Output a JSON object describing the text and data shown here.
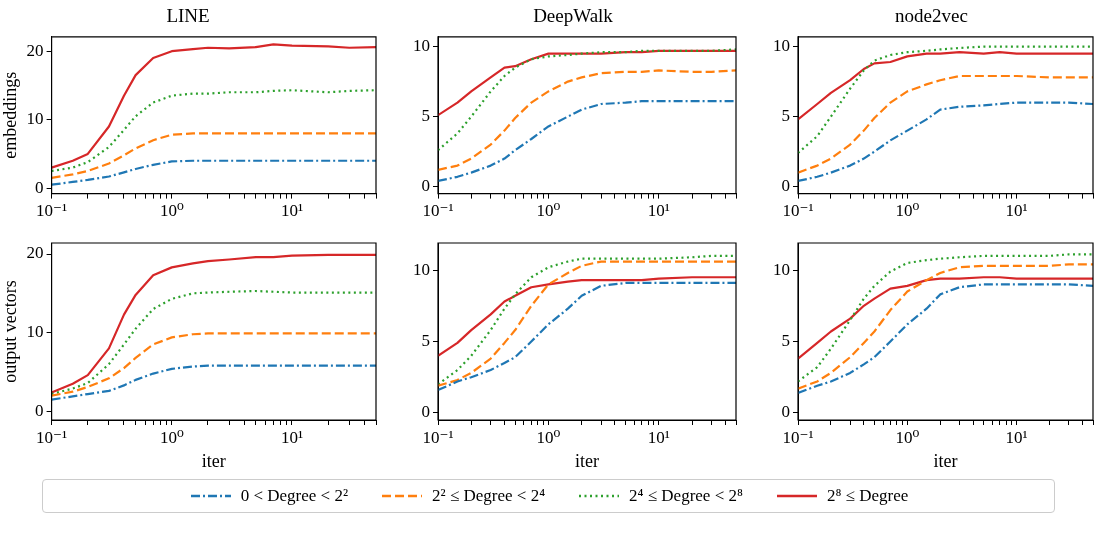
{
  "chart_data": [
    {
      "type": "line",
      "title": "LINE",
      "ylabel": "embeddings",
      "log": "x",
      "grid": false,
      "marker": "none",
      "xlim": [
        0.1,
        50
      ],
      "ylim": [
        -0.8,
        22.1
      ],
      "yticks": [
        0,
        10,
        20
      ],
      "xticks": [
        {
          "value": 0.1,
          "label": "10⁻¹"
        },
        {
          "value": 0.2,
          "label": null
        },
        {
          "value": 0.3,
          "label": null
        },
        {
          "value": 0.4,
          "label": null
        },
        {
          "value": 0.5,
          "label": null
        },
        {
          "value": 0.6,
          "label": null
        },
        {
          "value": 0.7,
          "label": null
        },
        {
          "value": 0.8,
          "label": null
        },
        {
          "value": 0.9,
          "label": null
        },
        {
          "value": 1,
          "label": "10⁰"
        },
        {
          "value": 2,
          "label": null
        },
        {
          "value": 3,
          "label": null
        },
        {
          "value": 4,
          "label": null
        },
        {
          "value": 5,
          "label": null
        },
        {
          "value": 6,
          "label": null
        },
        {
          "value": 7,
          "label": null
        },
        {
          "value": 8,
          "label": null
        },
        {
          "value": 9,
          "label": null
        },
        {
          "value": 10,
          "label": "10¹"
        },
        {
          "value": 20,
          "label": null
        },
        {
          "value": 30,
          "label": null
        },
        {
          "value": 40,
          "label": null
        },
        {
          "value": 50,
          "label": null
        }
      ],
      "x": [
        0.1,
        0.15,
        0.2,
        0.3,
        0.4,
        0.5,
        0.7,
        1,
        1.5,
        2,
        3,
        5,
        7,
        10,
        20,
        30,
        50
      ],
      "series": [
        {
          "color": "#1f77b4",
          "line_style": "dashdot",
          "values": [
            0.5,
            0.9,
            1.2,
            1.7,
            2.3,
            2.8,
            3.4,
            3.9,
            4,
            4,
            4,
            4,
            4,
            4,
            4,
            4,
            4
          ]
        },
        {
          "color": "#ff7f0e",
          "line_style": "dashed",
          "values": [
            1.5,
            2.0,
            2.5,
            3.6,
            4.8,
            5.8,
            7.0,
            7.8,
            8,
            8,
            8,
            8,
            8,
            8,
            8,
            8,
            8
          ]
        },
        {
          "color": "#2ca02c",
          "line_style": "dotted",
          "values": [
            2.5,
            3.0,
            3.8,
            6.0,
            8.5,
            10.5,
            12.5,
            13.5,
            13.8,
            13.8,
            14,
            14,
            14.2,
            14.3,
            14,
            14.2,
            14.3
          ]
        },
        {
          "color": "#d62728",
          "line_style": "solid",
          "values": [
            3,
            4,
            5,
            9,
            13.5,
            16.5,
            19,
            20,
            20.3,
            20.5,
            20.4,
            20.6,
            21,
            20.8,
            20.7,
            20.5,
            20.6
          ]
        }
      ]
    },
    {
      "type": "line",
      "title": "DeepWalk",
      "log": "x",
      "grid": false,
      "marker": "none",
      "xlim": [
        0.1,
        50
      ],
      "ylim": [
        -0.5,
        10.7
      ],
      "yticks": [
        0,
        5,
        10
      ],
      "xticks": [
        {
          "value": 0.1,
          "label": "10⁻¹"
        },
        {
          "value": 0.2,
          "label": null
        },
        {
          "value": 0.3,
          "label": null
        },
        {
          "value": 0.4,
          "label": null
        },
        {
          "value": 0.5,
          "label": null
        },
        {
          "value": 0.6,
          "label": null
        },
        {
          "value": 0.7,
          "label": null
        },
        {
          "value": 0.8,
          "label": null
        },
        {
          "value": 0.9,
          "label": null
        },
        {
          "value": 1,
          "label": "10⁰"
        },
        {
          "value": 2,
          "label": null
        },
        {
          "value": 3,
          "label": null
        },
        {
          "value": 4,
          "label": null
        },
        {
          "value": 5,
          "label": null
        },
        {
          "value": 6,
          "label": null
        },
        {
          "value": 7,
          "label": null
        },
        {
          "value": 8,
          "label": null
        },
        {
          "value": 9,
          "label": null
        },
        {
          "value": 10,
          "label": "10¹"
        },
        {
          "value": 20,
          "label": null
        },
        {
          "value": 30,
          "label": null
        },
        {
          "value": 40,
          "label": null
        },
        {
          "value": 50,
          "label": null
        }
      ],
      "x": [
        0.1,
        0.15,
        0.2,
        0.3,
        0.4,
        0.5,
        0.7,
        1,
        1.5,
        2,
        3,
        5,
        7,
        10,
        20,
        30,
        50
      ],
      "series": [
        {
          "color": "#1f77b4",
          "line_style": "dashdot",
          "values": [
            0.4,
            0.7,
            1.0,
            1.5,
            2.0,
            2.6,
            3.4,
            4.3,
            5.0,
            5.5,
            5.9,
            6.0,
            6.1,
            6.1,
            6.1,
            6.1,
            6.1
          ]
        },
        {
          "color": "#ff7f0e",
          "line_style": "dashed",
          "values": [
            1.2,
            1.5,
            2.0,
            3.0,
            4.0,
            4.9,
            6.0,
            6.8,
            7.5,
            7.8,
            8.1,
            8.2,
            8.2,
            8.3,
            8.2,
            8.2,
            8.3
          ]
        },
        {
          "color": "#2ca02c",
          "line_style": "dotted",
          "values": [
            2.6,
            3.8,
            5.0,
            6.8,
            7.9,
            8.5,
            9.1,
            9.3,
            9.4,
            9.5,
            9.6,
            9.6,
            9.7,
            9.7,
            9.7,
            9.7,
            9.8
          ]
        },
        {
          "color": "#d62728",
          "line_style": "solid",
          "values": [
            5.1,
            6.0,
            6.8,
            7.8,
            8.5,
            8.6,
            9.1,
            9.5,
            9.5,
            9.5,
            9.5,
            9.6,
            9.6,
            9.7,
            9.7,
            9.7,
            9.7
          ]
        }
      ]
    },
    {
      "type": "line",
      "title": "node2vec",
      "log": "x",
      "grid": false,
      "marker": "none",
      "xlim": [
        0.1,
        50
      ],
      "ylim": [
        -0.5,
        10.7
      ],
      "yticks": [
        0,
        5,
        10
      ],
      "xticks": [
        {
          "value": 0.1,
          "label": "10⁻¹"
        },
        {
          "value": 0.2,
          "label": null
        },
        {
          "value": 0.3,
          "label": null
        },
        {
          "value": 0.4,
          "label": null
        },
        {
          "value": 0.5,
          "label": null
        },
        {
          "value": 0.6,
          "label": null
        },
        {
          "value": 0.7,
          "label": null
        },
        {
          "value": 0.8,
          "label": null
        },
        {
          "value": 0.9,
          "label": null
        },
        {
          "value": 1,
          "label": "10⁰"
        },
        {
          "value": 2,
          "label": null
        },
        {
          "value": 3,
          "label": null
        },
        {
          "value": 4,
          "label": null
        },
        {
          "value": 5,
          "label": null
        },
        {
          "value": 6,
          "label": null
        },
        {
          "value": 7,
          "label": null
        },
        {
          "value": 8,
          "label": null
        },
        {
          "value": 9,
          "label": null
        },
        {
          "value": 10,
          "label": "10¹"
        },
        {
          "value": 20,
          "label": null
        },
        {
          "value": 30,
          "label": null
        },
        {
          "value": 40,
          "label": null
        },
        {
          "value": 50,
          "label": null
        }
      ],
      "x": [
        0.1,
        0.15,
        0.2,
        0.3,
        0.4,
        0.5,
        0.7,
        1,
        1.5,
        2,
        3,
        5,
        7,
        10,
        20,
        30,
        50
      ],
      "series": [
        {
          "color": "#1f77b4",
          "line_style": "dashdot",
          "values": [
            0.4,
            0.7,
            1.0,
            1.5,
            2.0,
            2.5,
            3.3,
            4.0,
            4.8,
            5.5,
            5.7,
            5.8,
            5.9,
            6.0,
            6.0,
            6.0,
            5.9
          ]
        },
        {
          "color": "#ff7f0e",
          "line_style": "dashed",
          "values": [
            1.0,
            1.5,
            2.0,
            3.0,
            4.0,
            4.9,
            6.0,
            6.8,
            7.3,
            7.6,
            7.9,
            7.9,
            7.9,
            7.9,
            7.8,
            7.8,
            7.8
          ]
        },
        {
          "color": "#2ca02c",
          "line_style": "dotted",
          "values": [
            2.4,
            3.6,
            5.0,
            7.0,
            8.3,
            9.0,
            9.4,
            9.6,
            9.7,
            9.8,
            9.9,
            10.0,
            10.0,
            10.0,
            10.0,
            10.0,
            10.0
          ]
        },
        {
          "color": "#d62728",
          "line_style": "solid",
          "values": [
            4.8,
            5.9,
            6.7,
            7.6,
            8.4,
            8.8,
            8.9,
            9.3,
            9.5,
            9.5,
            9.6,
            9.5,
            9.6,
            9.5,
            9.5,
            9.5,
            9.5
          ]
        }
      ]
    },
    {
      "type": "line",
      "ylabel": "output vectors",
      "xlabel": "iter",
      "log": "x",
      "grid": false,
      "marker": "none",
      "xlim": [
        0.1,
        50
      ],
      "ylim": [
        -1.1,
        21.4
      ],
      "yticks": [
        0,
        10,
        20
      ],
      "xticks": [
        {
          "value": 0.1,
          "label": "10⁻¹"
        },
        {
          "value": 0.2,
          "label": null
        },
        {
          "value": 0.3,
          "label": null
        },
        {
          "value": 0.4,
          "label": null
        },
        {
          "value": 0.5,
          "label": null
        },
        {
          "value": 0.6,
          "label": null
        },
        {
          "value": 0.7,
          "label": null
        },
        {
          "value": 0.8,
          "label": null
        },
        {
          "value": 0.9,
          "label": null
        },
        {
          "value": 1,
          "label": "10⁰"
        },
        {
          "value": 2,
          "label": null
        },
        {
          "value": 3,
          "label": null
        },
        {
          "value": 4,
          "label": null
        },
        {
          "value": 5,
          "label": null
        },
        {
          "value": 6,
          "label": null
        },
        {
          "value": 7,
          "label": null
        },
        {
          "value": 8,
          "label": null
        },
        {
          "value": 9,
          "label": null
        },
        {
          "value": 10,
          "label": "10¹"
        },
        {
          "value": 20,
          "label": null
        },
        {
          "value": 30,
          "label": null
        },
        {
          "value": 40,
          "label": null
        },
        {
          "value": 50,
          "label": null
        }
      ],
      "x": [
        0.1,
        0.15,
        0.2,
        0.3,
        0.4,
        0.5,
        0.7,
        1,
        1.5,
        2,
        3,
        5,
        7,
        10,
        20,
        30,
        50
      ],
      "series": [
        {
          "color": "#1f77b4",
          "line_style": "dashdot",
          "values": [
            1.5,
            1.9,
            2.2,
            2.6,
            3.3,
            4.0,
            4.8,
            5.4,
            5.7,
            5.8,
            5.8,
            5.8,
            5.8,
            5.8,
            5.8,
            5.8,
            5.8
          ]
        },
        {
          "color": "#ff7f0e",
          "line_style": "dashed",
          "values": [
            2.0,
            2.5,
            3.1,
            4.2,
            5.5,
            6.8,
            8.5,
            9.4,
            9.8,
            9.9,
            9.9,
            9.9,
            9.9,
            9.9,
            9.9,
            9.9,
            9.9
          ]
        },
        {
          "color": "#2ca02c",
          "line_style": "dotted",
          "values": [
            2.2,
            2.9,
            3.6,
            6.0,
            8.5,
            10.5,
            13,
            14.3,
            15,
            15.1,
            15.2,
            15.3,
            15.2,
            15.1,
            15.1,
            15.1,
            15.1
          ]
        },
        {
          "color": "#d62728",
          "line_style": "solid",
          "values": [
            2.4,
            3.5,
            4.6,
            8.0,
            12.3,
            14.8,
            17.3,
            18.3,
            18.8,
            19.1,
            19.3,
            19.6,
            19.6,
            19.8,
            19.9,
            19.9,
            19.9
          ]
        }
      ]
    },
    {
      "type": "line",
      "xlabel": "iter",
      "log": "x",
      "grid": false,
      "marker": "none",
      "xlim": [
        0.1,
        50
      ],
      "ylim": [
        -0.5,
        11.9
      ],
      "yticks": [
        0,
        5,
        10
      ],
      "xticks": [
        {
          "value": 0.1,
          "label": "10⁻¹"
        },
        {
          "value": 0.2,
          "label": null
        },
        {
          "value": 0.3,
          "label": null
        },
        {
          "value": 0.4,
          "label": null
        },
        {
          "value": 0.5,
          "label": null
        },
        {
          "value": 0.6,
          "label": null
        },
        {
          "value": 0.7,
          "label": null
        },
        {
          "value": 0.8,
          "label": null
        },
        {
          "value": 0.9,
          "label": null
        },
        {
          "value": 1,
          "label": "10⁰"
        },
        {
          "value": 2,
          "label": null
        },
        {
          "value": 3,
          "label": null
        },
        {
          "value": 4,
          "label": null
        },
        {
          "value": 5,
          "label": null
        },
        {
          "value": 6,
          "label": null
        },
        {
          "value": 7,
          "label": null
        },
        {
          "value": 8,
          "label": null
        },
        {
          "value": 9,
          "label": null
        },
        {
          "value": 10,
          "label": "10¹"
        },
        {
          "value": 20,
          "label": null
        },
        {
          "value": 30,
          "label": null
        },
        {
          "value": 40,
          "label": null
        },
        {
          "value": 50,
          "label": null
        }
      ],
      "x": [
        0.1,
        0.15,
        0.2,
        0.3,
        0.4,
        0.5,
        0.7,
        1,
        1.5,
        2,
        3,
        5,
        7,
        10,
        20,
        30,
        50
      ],
      "series": [
        {
          "color": "#1f77b4",
          "line_style": "dashdot",
          "values": [
            1.6,
            2.2,
            2.5,
            3.0,
            3.5,
            3.9,
            5.0,
            6.2,
            7.3,
            8.2,
            8.9,
            9.1,
            9.1,
            9.1,
            9.1,
            9.1,
            9.1
          ]
        },
        {
          "color": "#ff7f0e",
          "line_style": "dashed",
          "values": [
            1.9,
            2.3,
            2.8,
            3.8,
            4.9,
            5.8,
            7.5,
            9.0,
            9.8,
            10.3,
            10.6,
            10.6,
            10.6,
            10.6,
            10.6,
            10.6,
            10.6
          ]
        },
        {
          "color": "#2ca02c",
          "line_style": "dotted",
          "values": [
            2.0,
            3.0,
            4.0,
            5.8,
            7.3,
            8.3,
            9.5,
            10.2,
            10.6,
            10.8,
            10.8,
            10.8,
            10.8,
            10.8,
            10.9,
            11.0,
            11.0
          ]
        },
        {
          "color": "#d62728",
          "line_style": "solid",
          "values": [
            4.0,
            4.9,
            5.8,
            6.9,
            7.8,
            8.2,
            8.8,
            9.0,
            9.2,
            9.3,
            9.3,
            9.3,
            9.3,
            9.4,
            9.5,
            9.5,
            9.5
          ]
        }
      ]
    },
    {
      "type": "line",
      "xlabel": "iter",
      "log": "x",
      "grid": false,
      "marker": "none",
      "legend": "bottom",
      "xlim": [
        0.1,
        50
      ],
      "ylim": [
        -0.5,
        11.9
      ],
      "yticks": [
        0,
        5,
        10
      ],
      "xticks": [
        {
          "value": 0.1,
          "label": "10⁻¹"
        },
        {
          "value": 0.2,
          "label": null
        },
        {
          "value": 0.3,
          "label": null
        },
        {
          "value": 0.4,
          "label": null
        },
        {
          "value": 0.5,
          "label": null
        },
        {
          "value": 0.6,
          "label": null
        },
        {
          "value": 0.7,
          "label": null
        },
        {
          "value": 0.8,
          "label": null
        },
        {
          "value": 0.9,
          "label": null
        },
        {
          "value": 1,
          "label": "10⁰"
        },
        {
          "value": 2,
          "label": null
        },
        {
          "value": 3,
          "label": null
        },
        {
          "value": 4,
          "label": null
        },
        {
          "value": 5,
          "label": null
        },
        {
          "value": 6,
          "label": null
        },
        {
          "value": 7,
          "label": null
        },
        {
          "value": 8,
          "label": null
        },
        {
          "value": 9,
          "label": null
        },
        {
          "value": 10,
          "label": "10¹"
        },
        {
          "value": 20,
          "label": null
        },
        {
          "value": 30,
          "label": null
        },
        {
          "value": 40,
          "label": null
        },
        {
          "value": 50,
          "label": null
        }
      ],
      "x": [
        0.1,
        0.15,
        0.2,
        0.3,
        0.4,
        0.5,
        0.7,
        1,
        1.5,
        2,
        3,
        5,
        7,
        10,
        20,
        30,
        50
      ],
      "series": [
        {
          "name": "0 < Degree < 2²",
          "color": "#1f77b4",
          "line_style": "dashdot",
          "values": [
            1.4,
            1.9,
            2.2,
            2.8,
            3.4,
            3.9,
            5.0,
            6.2,
            7.3,
            8.3,
            8.8,
            9.0,
            9.0,
            9.0,
            9.0,
            9.0,
            8.9
          ]
        },
        {
          "name": "2² ≤ Degree < 2⁴",
          "color": "#ff7f0e",
          "line_style": "dashed",
          "values": [
            1.7,
            2.2,
            2.8,
            3.9,
            4.9,
            5.7,
            7.2,
            8.5,
            9.3,
            9.8,
            10.2,
            10.3,
            10.3,
            10.3,
            10.3,
            10.4,
            10.4
          ]
        },
        {
          "name": "2⁴ ≤ Degree < 2⁸",
          "color": "#2ca02c",
          "line_style": "dotted",
          "values": [
            2.2,
            3.2,
            4.5,
            6.5,
            8.0,
            8.9,
            9.9,
            10.5,
            10.7,
            10.8,
            10.9,
            11.0,
            11.0,
            11.0,
            11.0,
            11.1,
            11.1
          ]
        },
        {
          "name": "2⁸ ≤ Degree",
          "color": "#d62728",
          "line_style": "solid",
          "values": [
            3.8,
            4.9,
            5.7,
            6.6,
            7.5,
            8.0,
            8.7,
            8.9,
            9.3,
            9.4,
            9.4,
            9.5,
            9.5,
            9.4,
            9.4,
            9.4,
            9.4
          ]
        }
      ]
    }
  ]
}
